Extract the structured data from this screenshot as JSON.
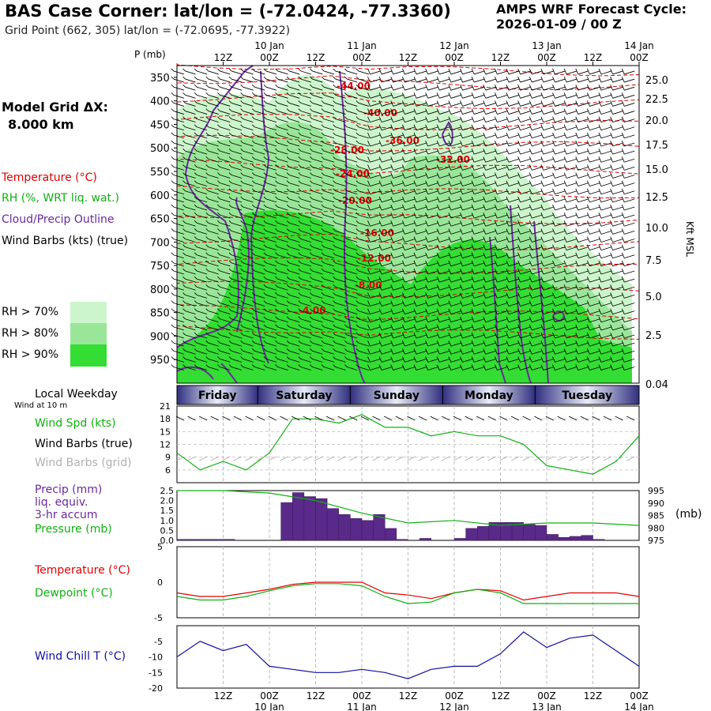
{
  "header": {
    "title": "BAS Case Corner:  lat/lon = (-72.0424, -77.3360)",
    "subtitle": "Grid Point (662, 305) lat/lon = (-72.0695, -77.3922)",
    "cycle_line1": "AMPS WRF Forecast Cycle:",
    "cycle_line2": "2026-01-09 / 00  Z"
  },
  "legend": {
    "model_grid_label": "Model Grid ΔX:",
    "model_grid_value": "8.000 km",
    "temperature": "Temperature (°C)",
    "rh": "RH (%, WRT liq. wat.)",
    "cloud": "Cloud/Precip Outline",
    "wind": "Wind Barbs (kts) (true)",
    "rh70": "RH > 70%",
    "rh80": "RH > 80%",
    "rh90": "RH > 90%",
    "colors": {
      "rh70": "#ccf5cc",
      "rh80": "#99e699",
      "rh90": "#33dd33",
      "cloud": "#6a2a9a",
      "temp": "#e00000"
    }
  },
  "panel_labels": {
    "p_mb": "P (mb)",
    "kft_msl": "Kft MSL",
    "local_weekday": "Local Weekday",
    "wind_at_10m": "Wind at 10 m",
    "wind_spd": "Wind Spd (kts)",
    "wind_barbs_true": "Wind Barbs (true)",
    "wind_barbs_grid": "Wind Barbs (grid)",
    "precip1": "Precip (mm)",
    "precip2": "liq. equiv.",
    "precip3": "3-hr accum",
    "pressure": "Pressure (mb)",
    "pressure_unit": "(mb)",
    "temperature": "Temperature (°C)",
    "dewpoint": "Dewpoint (°C)",
    "wind_chill": "Wind Chill T (°C)"
  },
  "time_axis": {
    "top_hours": [
      "12Z",
      "00Z",
      "12Z",
      "00Z",
      "12Z",
      "00Z",
      "12Z",
      "00Z",
      "12Z",
      "00Z"
    ],
    "top_dates": [
      "10 Jan",
      "11 Jan",
      "12 Jan",
      "13 Jan",
      "14 Jan"
    ],
    "weekdays": [
      "Friday",
      "Saturday",
      "Sunday",
      "Monday",
      "Tuesday"
    ]
  },
  "chart_data": [
    {
      "type": "heatmap",
      "name": "time-height cross section",
      "x_unit": "forecast hour",
      "xlim": [
        0,
        120
      ],
      "y_ticks_pressure": [
        350,
        400,
        450,
        500,
        550,
        600,
        650,
        700,
        750,
        800,
        850,
        900,
        950
      ],
      "y_ticks_kft": [
        "25.0",
        "22.5",
        "20.0",
        "17.5",
        "15.0",
        "12.5",
        "10.0",
        "7.5",
        "5.0",
        "2.5",
        "0.04"
      ],
      "temperature_labels": [
        "-44.00",
        "-40.00",
        "-36.00",
        "-32.00",
        "-28.00",
        "-24.00",
        "-20.00",
        "-16.00",
        "-12.00",
        "-8.00",
        "-4.00"
      ]
    },
    {
      "type": "line",
      "name": "wind speed",
      "ylabel": "Wind Spd (kts)",
      "ylim": [
        3,
        21
      ],
      "yticks": [
        6,
        9,
        12,
        15,
        18,
        21
      ],
      "x": [
        0,
        6,
        12,
        18,
        24,
        30,
        36,
        42,
        48,
        54,
        60,
        66,
        72,
        78,
        84,
        90,
        96,
        102,
        108,
        114,
        120
      ],
      "values": [
        10,
        6,
        8,
        6,
        10,
        18,
        18,
        17,
        19,
        16,
        16,
        14,
        15,
        14,
        14,
        12,
        7,
        6,
        5,
        8,
        14
      ]
    },
    {
      "type": "bar",
      "name": "precipitation 3-hr accum",
      "ylabel": "Precip (mm)",
      "ylim": [
        0,
        2.5
      ],
      "yticks": [
        "0.0",
        "0.5",
        "1.0",
        "1.5",
        "2.0",
        "2.5"
      ],
      "x": [
        0,
        3,
        6,
        9,
        12,
        15,
        18,
        21,
        24,
        27,
        30,
        33,
        36,
        39,
        42,
        45,
        48,
        51,
        54,
        57,
        60,
        63,
        66,
        69,
        72,
        75,
        78,
        81,
        84,
        87,
        90,
        93,
        96,
        99,
        102,
        105,
        108,
        111,
        114,
        117
      ],
      "values": [
        0.05,
        0.05,
        0.05,
        0.05,
        0.05,
        0,
        0,
        0,
        0,
        1.9,
        2.4,
        2.2,
        2.1,
        1.6,
        1.3,
        1.1,
        1.0,
        1.3,
        0.6,
        0.05,
        0,
        0.1,
        0,
        0,
        0.1,
        0.6,
        0.7,
        0.9,
        0.9,
        0.9,
        0.8,
        0.75,
        0.3,
        0.15,
        0.2,
        0.25,
        0.05,
        0,
        0,
        0
      ]
    },
    {
      "type": "line",
      "name": "pressure",
      "ylabel": "Pressure (mb)",
      "ylim": [
        975,
        995
      ],
      "yticks": [
        975,
        980,
        985,
        990,
        995
      ],
      "x": [
        0,
        12,
        24,
        36,
        48,
        60,
        72,
        84,
        96,
        108,
        120
      ],
      "values": [
        995,
        995,
        994,
        991,
        986,
        982,
        983,
        981,
        982,
        982,
        981
      ]
    },
    {
      "type": "line",
      "name": "temperature and dewpoint",
      "ylim": [
        -5,
        5
      ],
      "yticks": [
        -5,
        0,
        5
      ],
      "x": [
        0,
        6,
        12,
        18,
        24,
        30,
        36,
        42,
        48,
        54,
        60,
        66,
        72,
        78,
        84,
        90,
        96,
        102,
        108,
        114,
        120
      ],
      "series": [
        {
          "name": "Temperature (°C)",
          "color": "#e00000",
          "values": [
            -1.5,
            -2,
            -2,
            -1.5,
            -1,
            -0.3,
            0,
            0,
            0,
            -1.5,
            -1.8,
            -2.3,
            -1.5,
            -1,
            -1.2,
            -2.5,
            -2,
            -1.5,
            -1.5,
            -1.5,
            -2
          ]
        },
        {
          "name": "Dewpoint (°C)",
          "color": "#10b010",
          "values": [
            -2,
            -2.5,
            -2.5,
            -2,
            -1.2,
            -0.5,
            -0.2,
            -0.2,
            -0.5,
            -2,
            -3,
            -2.8,
            -1.5,
            -1,
            -1.5,
            -3,
            -3,
            -3,
            -3,
            -3,
            -3
          ]
        }
      ]
    },
    {
      "type": "line",
      "name": "wind chill",
      "ylabel": "Wind Chill T (°C)",
      "ylim": [
        -20,
        0
      ],
      "yticks": [
        -20,
        -15,
        -10,
        -5
      ],
      "x": [
        0,
        6,
        12,
        18,
        24,
        30,
        36,
        42,
        48,
        54,
        60,
        66,
        72,
        78,
        84,
        90,
        96,
        102,
        108,
        114,
        120
      ],
      "values": [
        -10,
        -5,
        -8,
        -6,
        -13,
        -14,
        -15,
        -15,
        -14,
        -15,
        -17,
        -14,
        -13,
        -13,
        -9,
        -2,
        -7,
        -4,
        -3,
        -8,
        -13
      ],
      "color": "#1010a0"
    }
  ]
}
